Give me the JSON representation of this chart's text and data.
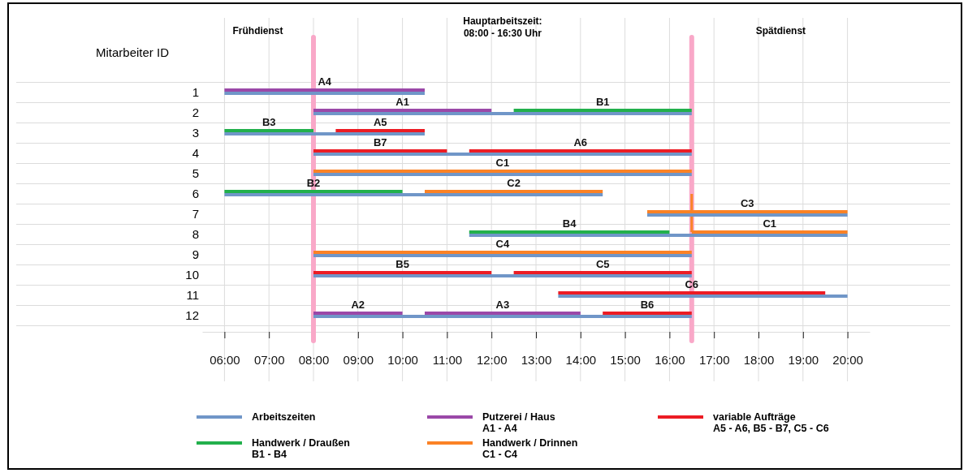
{
  "chart_data": {
    "type": "bar",
    "orientation": "horizontal",
    "ylabel": "Mitarbeiter ID",
    "categories": [
      "1",
      "2",
      "3",
      "4",
      "5",
      "6",
      "7",
      "8",
      "9",
      "10",
      "11",
      "12"
    ],
    "xlim": [
      5.5,
      20.5
    ],
    "xticks": [
      {
        "value": 6,
        "label": "06:00"
      },
      {
        "value": 7,
        "label": "07:00"
      },
      {
        "value": 8,
        "label": "08:00"
      },
      {
        "value": 9,
        "label": "09:00"
      },
      {
        "value": 10,
        "label": "10:00"
      },
      {
        "value": 11,
        "label": "11:00"
      },
      {
        "value": 12,
        "label": "12:00"
      },
      {
        "value": 13,
        "label": "13:00"
      },
      {
        "value": 14,
        "label": "14:00"
      },
      {
        "value": 15,
        "label": "15:00"
      },
      {
        "value": 16,
        "label": "16:00"
      },
      {
        "value": 17,
        "label": "17:00"
      },
      {
        "value": 18,
        "label": "18:00"
      },
      {
        "value": 19,
        "label": "19:00"
      },
      {
        "value": 20,
        "label": "20:00"
      }
    ],
    "grid": true,
    "legend": "bottom",
    "ref_lines": [
      {
        "axis": "x",
        "value": 8,
        "color": "#f9a8c8"
      },
      {
        "axis": "x",
        "value": 16.5,
        "color": "#f9a8c8"
      }
    ],
    "annotations": [
      "Frühdienst",
      "Hauptarbeitszeit:\n08:00 - 16:30 Uhr",
      "Spätdienst"
    ],
    "series": [
      {
        "name": "Arbeitszeiten",
        "color": "#7096c8",
        "base": [
          6,
          8,
          6,
          8,
          8,
          6,
          15.5,
          11.5,
          8,
          8,
          13.5,
          8
        ],
        "values": [
          4.5,
          8.5,
          4.5,
          8.5,
          8.5,
          8.5,
          4.5,
          8.5,
          8.5,
          8.5,
          6.5,
          8.5
        ]
      },
      {
        "name": "Handwerk / Draußen\nB1 - B4",
        "color": "#22b04c",
        "base": [
          null,
          12.5,
          6,
          null,
          null,
          6,
          null,
          11.5,
          null,
          null,
          null,
          null
        ],
        "values": [
          null,
          4,
          2,
          null,
          null,
          4,
          null,
          4.5,
          null,
          null,
          null,
          null
        ],
        "value_labels": [
          null,
          "B1",
          "B3",
          null,
          null,
          "B2",
          null,
          "B4",
          null,
          null,
          null,
          null
        ]
      },
      {
        "name": "Putzerei / Haus\nA1 - A4",
        "color": "#9b48a8",
        "base": [
          6,
          8,
          null,
          null,
          null,
          null,
          null,
          null,
          null,
          null,
          null,
          8
        ],
        "values": [
          4.5,
          4,
          null,
          null,
          null,
          null,
          null,
          null,
          null,
          null,
          null,
          2
        ],
        "value_labels": [
          "A4",
          "A1",
          null,
          null,
          null,
          null,
          null,
          null,
          null,
          null,
          null,
          "A2"
        ]
      },
      {
        "name": "Handwerk / Drinnen\nC1 - C4",
        "color": "#fb8226",
        "base": [
          null,
          null,
          null,
          null,
          8,
          10.5,
          15.5,
          16.5,
          8,
          null,
          null,
          null
        ],
        "values": [
          null,
          null,
          null,
          null,
          8.5,
          4,
          4.5,
          3.5,
          8.5,
          null,
          null,
          null
        ],
        "value_labels": [
          null,
          null,
          null,
          null,
          "C1",
          "C2",
          "C3",
          "C1",
          "C4",
          null,
          null,
          null
        ]
      },
      {
        "name": "variable Aufträge\nA5 - A6, B5 - B7, C5 - C6",
        "color": "#ec1c24",
        "base": [
          null,
          null,
          8.5,
          8,
          null,
          null,
          null,
          null,
          null,
          8,
          13.5,
          14.5
        ],
        "values": [
          null,
          null,
          2,
          3,
          null,
          null,
          null,
          null,
          null,
          4,
          6,
          2
        ],
        "value_labels": [
          null,
          null,
          "A5",
          "B7",
          null,
          null,
          null,
          null,
          null,
          "B5",
          "C6",
          "B6"
        ]
      },
      {
        "color": "#9b48a8",
        "base": [
          null,
          null,
          null,
          null,
          null,
          null,
          null,
          null,
          null,
          null,
          null,
          10.5
        ],
        "values": [
          null,
          null,
          null,
          null,
          null,
          null,
          null,
          null,
          null,
          null,
          null,
          3.5
        ],
        "value_labels": [
          null,
          null,
          null,
          null,
          null,
          null,
          null,
          null,
          null,
          null,
          null,
          "A3"
        ]
      },
      {
        "color": "#ec1c24",
        "base": [
          null,
          null,
          null,
          11.5,
          null,
          null,
          null,
          null,
          null,
          12.5,
          null,
          null
        ],
        "values": [
          null,
          null,
          null,
          5,
          null,
          null,
          null,
          null,
          null,
          4,
          null,
          null
        ],
        "value_labels": [
          null,
          null,
          null,
          "A6",
          null,
          null,
          null,
          null,
          null,
          "C5",
          null,
          null
        ]
      }
    ]
  }
}
